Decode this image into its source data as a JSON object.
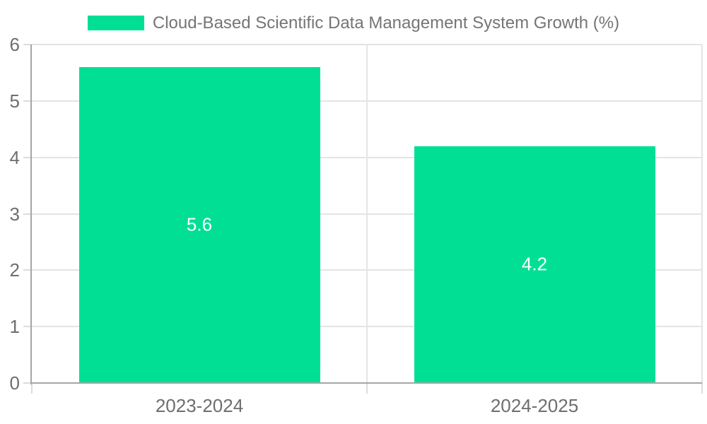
{
  "chart_data": {
    "type": "bar",
    "title": "",
    "legend_position": "top-center",
    "categories": [
      "2023-2024",
      "2024-2025"
    ],
    "series": [
      {
        "name": "Cloud-Based Scientific Data Management System Growth (%)",
        "values": [
          5.6,
          4.2
        ]
      }
    ],
    "value_labels": [
      "5.6",
      "4.2"
    ],
    "xlabel": "",
    "ylabel": "",
    "ylim": [
      0,
      6
    ],
    "yticks": [
      0,
      1,
      2,
      3,
      4,
      5,
      6
    ],
    "ytick_labels": [
      "0",
      "1",
      "2",
      "3",
      "4",
      "5",
      "6"
    ],
    "grid": true,
    "colors": {
      "bar": "#00df94",
      "axis_line": "#a6a6a6",
      "grid_line": "#e4e4e4",
      "tick_line": "#dcdcdc",
      "axis_label": "#6e6e6e",
      "legend_text": "#757575",
      "value_label": "#ffffff",
      "background": "#ffffff"
    }
  }
}
